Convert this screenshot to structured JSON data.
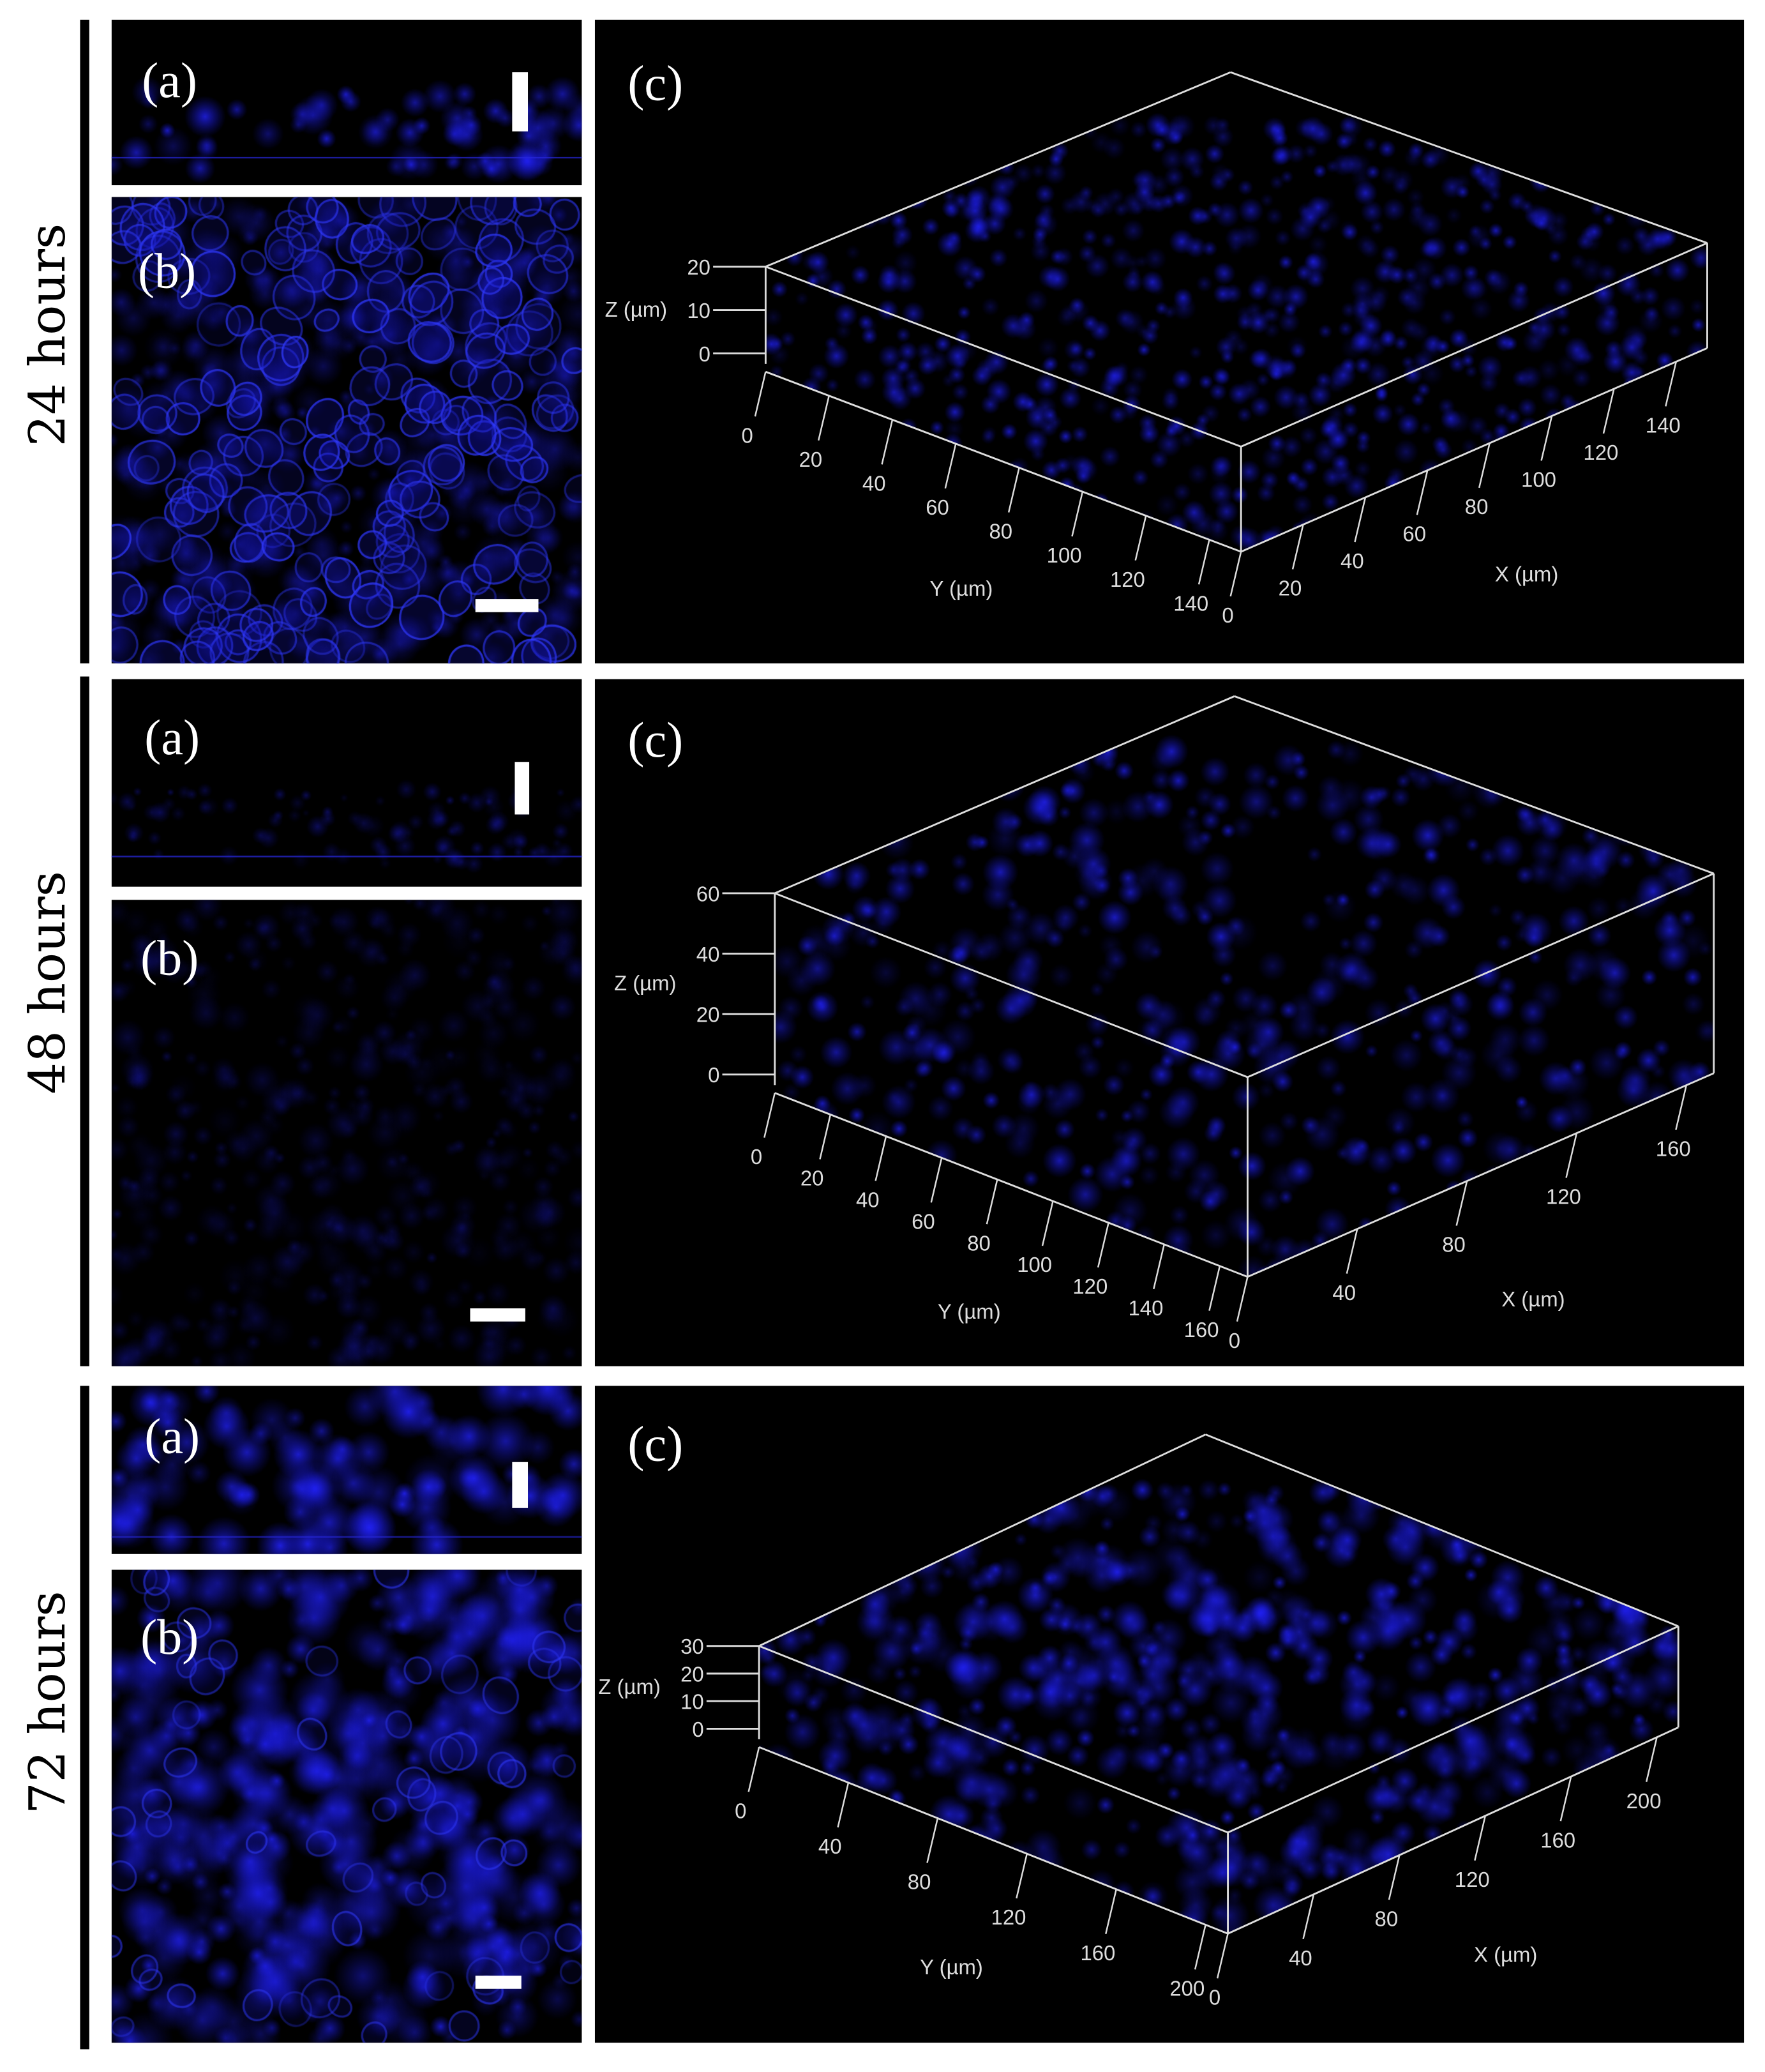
{
  "colors": {
    "background": "#000000",
    "fluorescence": "#1c1cff",
    "frame": "#ffffff",
    "axes": "#dddddd"
  },
  "rows": [
    {
      "label": "24 hours",
      "panel_a": "(a)",
      "panel_b": "(b)",
      "panel_c": "(c)",
      "plot3d": {
        "z_label": "Z (µm)",
        "y_label": "Y (µm)",
        "x_label": "X (µm)",
        "z_ticks": [
          "0",
          "10",
          "20"
        ],
        "z_range": [
          0,
          20
        ],
        "y_ticks": [
          "0",
          "20",
          "40",
          "60",
          "80",
          "100",
          "120",
          "140"
        ],
        "y_range": [
          0,
          150
        ],
        "x_ticks": [
          "0",
          "20",
          "40",
          "60",
          "80",
          "100",
          "120",
          "140"
        ],
        "x_range": [
          0,
          150
        ]
      }
    },
    {
      "label": "48 hours",
      "panel_a": "(a)",
      "panel_b": "(b)",
      "panel_c": "(c)",
      "plot3d": {
        "z_label": "Z (µm)",
        "y_label": "Y (µm)",
        "x_label": "X (µm)",
        "z_ticks": [
          "0",
          "20",
          "40",
          "60"
        ],
        "z_range": [
          0,
          60
        ],
        "y_ticks": [
          "0",
          "20",
          "40",
          "60",
          "80",
          "100",
          "120",
          "140",
          "160"
        ],
        "y_range": [
          0,
          170
        ],
        "x_ticks": [
          "0",
          "40",
          "80",
          "120",
          "160"
        ],
        "x_range": [
          0,
          170
        ]
      }
    },
    {
      "label": "72 hours",
      "panel_a": "(a)",
      "panel_b": "(b)",
      "panel_c": "(c)",
      "plot3d": {
        "z_label": "Z (µm)",
        "y_label": "Y (µm)",
        "x_label": "X (µm)",
        "z_ticks": [
          "0",
          "10",
          "20",
          "30"
        ],
        "z_range": [
          0,
          30
        ],
        "y_ticks": [
          "0",
          "40",
          "80",
          "120",
          "160",
          "200"
        ],
        "y_range": [
          0,
          210
        ],
        "x_ticks": [
          "0",
          "40",
          "80",
          "120",
          "160",
          "200"
        ],
        "x_range": [
          0,
          210
        ]
      }
    }
  ]
}
